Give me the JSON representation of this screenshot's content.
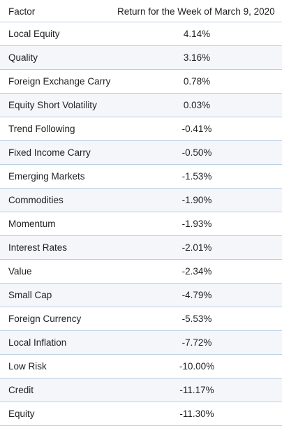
{
  "table": {
    "headers": {
      "factor": "Factor",
      "return": "Return for the  Week of March 9, 2020"
    },
    "rows": [
      {
        "factor": "Local Equity",
        "return": "4.14%"
      },
      {
        "factor": "Quality",
        "return": "3.16%"
      },
      {
        "factor": "Foreign Exchange Carry",
        "return": "0.78%"
      },
      {
        "factor": "Equity Short Volatility",
        "return": "0.03%"
      },
      {
        "factor": "Trend Following",
        "return": "-0.41%"
      },
      {
        "factor": "Fixed Income Carry",
        "return": "-0.50%"
      },
      {
        "factor": "Emerging Markets",
        "return": "-1.53%"
      },
      {
        "factor": "Commodities",
        "return": "-1.90%"
      },
      {
        "factor": "Momentum",
        "return": "-1.93%"
      },
      {
        "factor": "Interest Rates",
        "return": "-2.01%"
      },
      {
        "factor": "Value",
        "return": "-2.34%"
      },
      {
        "factor": "Small Cap",
        "return": "-4.79%"
      },
      {
        "factor": "Foreign Currency",
        "return": "-5.53%"
      },
      {
        "factor": "Local Inflation",
        "return": "-7.72%"
      },
      {
        "factor": "Low Risk",
        "return": "-10.00%"
      },
      {
        "factor": "Credit",
        "return": "-11.17%"
      },
      {
        "factor": "Equity",
        "return": "-11.30%"
      }
    ]
  },
  "colors": {
    "row_alt_background": "#f4f6f9",
    "divider": "#b9cfe3",
    "text": "#1f1f1f"
  }
}
